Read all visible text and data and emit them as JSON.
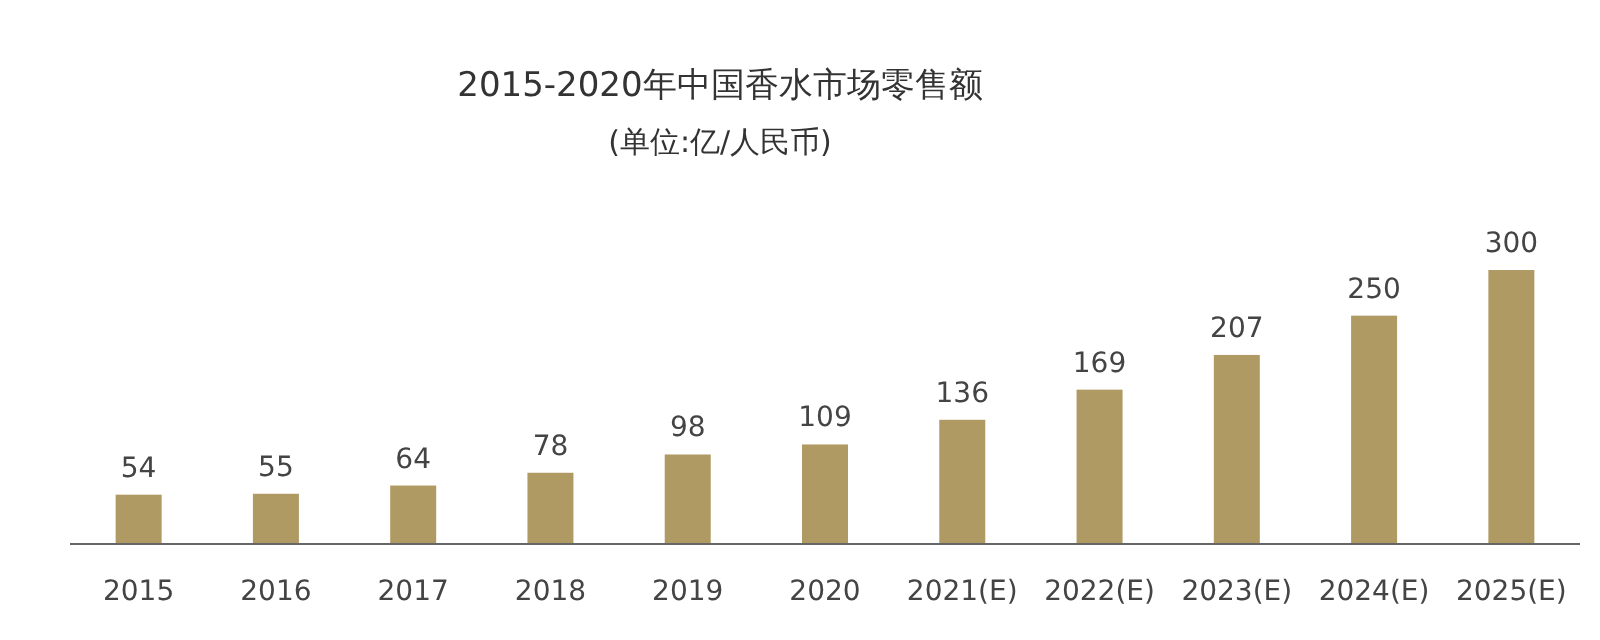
{
  "chart_data": {
    "type": "bar",
    "title": "2015-2020年中国香水市场零售额",
    "subtitle": "(单位:亿/人民币)",
    "categories": [
      "2015",
      "2016",
      "2017",
      "2018",
      "2019",
      "2020",
      "2021(E)",
      "2022(E)",
      "2023(E)",
      "2024(E)",
      "2025(E)"
    ],
    "values": [
      54,
      55,
      64,
      78,
      98,
      109,
      136,
      169,
      207,
      250,
      300
    ],
    "color": "#b09a63",
    "data_labels": true
  }
}
